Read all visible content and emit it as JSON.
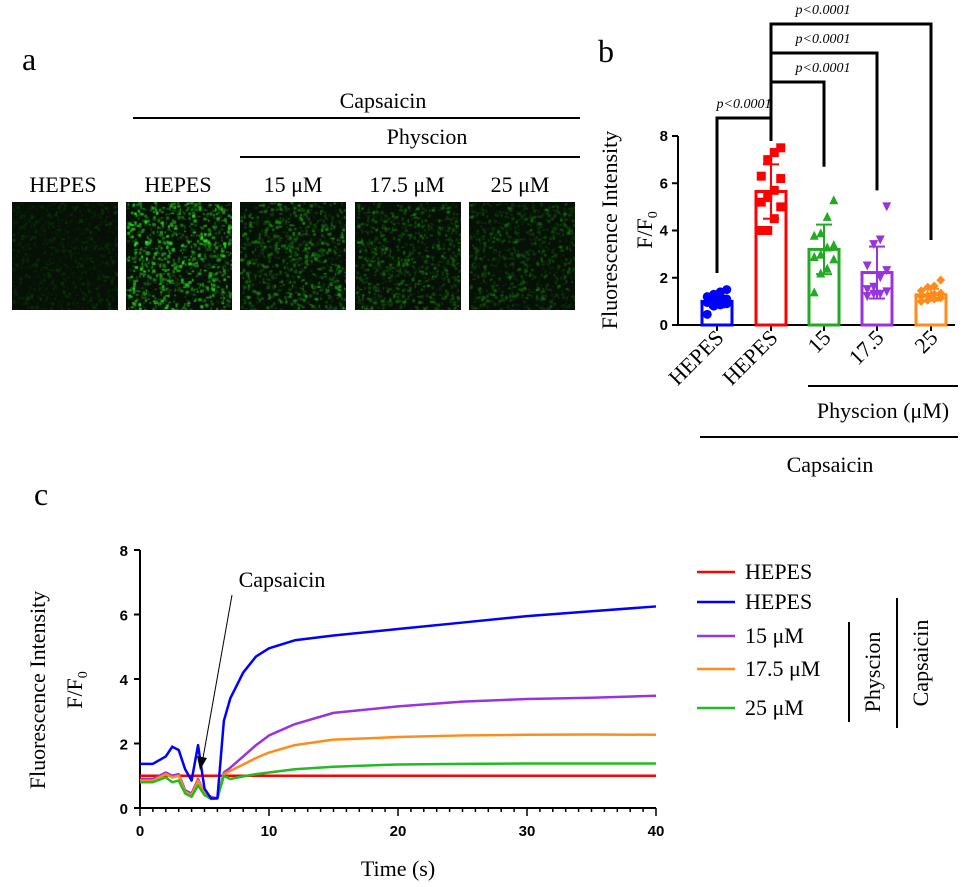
{
  "panel_a": {
    "label": "a",
    "group_label": "Capsaicin",
    "subgroup_label": "Physcion",
    "columns": [
      "HEPES",
      "HEPES",
      "15 μM",
      "17.5 μM",
      "25 μM"
    ],
    "image_brightness": [
      0.15,
      1.0,
      0.55,
      0.45,
      0.35
    ],
    "fluorescence_color": "#22dd22"
  },
  "chart_data": [
    {
      "panel": "b",
      "type": "bar",
      "ylabel_line1": "Fluorescence Intensity",
      "ylabel_line2": "F/F",
      "ylabel_sub": "0",
      "ylim": [
        0,
        8
      ],
      "yticks": [
        "0",
        "2",
        "4",
        "6",
        "8"
      ],
      "categories": [
        "HEPES",
        "HEPES",
        "15",
        "17.5",
        "25"
      ],
      "colors": [
        "#0000ff",
        "#ff0000",
        "#22aa22",
        "#9933dd",
        "#ff8c1a"
      ],
      "markers": [
        "circle",
        "square",
        "triangle-up",
        "triangle-down",
        "diamond"
      ],
      "means": [
        1.0,
        5.65,
        3.2,
        2.22,
        1.28
      ],
      "sd": [
        0.25,
        1.15,
        1.05,
        1.1,
        0.25
      ],
      "points": [
        [
          0.45,
          0.8,
          0.85,
          0.9,
          0.95,
          1.0,
          1.05,
          1.1,
          1.2,
          1.3,
          1.4,
          1.5
        ],
        [
          4.0,
          4.0,
          4.5,
          5.0,
          5.2,
          5.4,
          5.7,
          6.2,
          6.3,
          7.0,
          7.3,
          7.5
        ],
        [
          1.4,
          2.2,
          2.4,
          2.8,
          2.9,
          3.0,
          3.3,
          3.4,
          3.8,
          3.9,
          4.6,
          5.3
        ],
        [
          1.2,
          1.3,
          1.3,
          1.4,
          1.5,
          1.6,
          2.0,
          2.3,
          2.5,
          3.4,
          3.6,
          5.0
        ],
        [
          1.0,
          1.05,
          1.1,
          1.15,
          1.2,
          1.25,
          1.3,
          1.35,
          1.45,
          1.6,
          1.65,
          1.9
        ]
      ],
      "comparisons": [
        {
          "pair": [
            0,
            1
          ],
          "label": "p<0.0001"
        },
        {
          "pair": [
            1,
            2
          ],
          "label": "p<0.0001"
        },
        {
          "pair": [
            1,
            3
          ],
          "label": "p<0.0001"
        },
        {
          "pair": [
            1,
            4
          ],
          "label": "p<0.0001"
        }
      ],
      "group_labels": {
        "physcion": "Physcion (μM)",
        "capsaicin": "Capsaicin"
      },
      "label": "b"
    },
    {
      "panel": "c",
      "type": "line",
      "label": "c",
      "xlabel": "Time (s)",
      "ylabel_line1": "Fluorescence Intensity",
      "ylabel_line2": "F/F",
      "ylabel_sub": "0",
      "xlim": [
        0,
        40
      ],
      "ylim": [
        0,
        8
      ],
      "xticks": [
        "0",
        "10",
        "20",
        "30",
        "40"
      ],
      "yticks": [
        "0",
        "2",
        "4",
        "6",
        "8"
      ],
      "annotation": "Capsaicin",
      "x": [
        0,
        1,
        2,
        2.5,
        3,
        3.5,
        4,
        4.5,
        5,
        5.5,
        6,
        6.5,
        7,
        8,
        9,
        10,
        12,
        15,
        20,
        25,
        30,
        35,
        40
      ],
      "series": [
        {
          "name": "HEPES",
          "color": "#ff0000",
          "values": [
            1,
            1,
            1,
            1,
            1,
            1,
            1,
            1,
            1,
            1,
            1,
            1,
            1,
            1,
            1,
            1,
            1,
            1,
            1,
            1,
            1,
            1,
            1
          ]
        },
        {
          "name": "HEPES",
          "color": "#0000ff",
          "values": [
            1.37,
            1.37,
            1.6,
            1.9,
            1.8,
            1.2,
            0.85,
            1.95,
            0.6,
            0.3,
            0.3,
            2.7,
            3.4,
            4.2,
            4.7,
            4.95,
            5.2,
            5.35,
            5.55,
            5.75,
            5.95,
            6.1,
            6.25
          ]
        },
        {
          "name": "15 μM",
          "color": "#9933dd",
          "values": [
            0.9,
            0.9,
            1.1,
            1.0,
            1.05,
            0.55,
            0.45,
            0.9,
            0.45,
            0.35,
            0.3,
            1.1,
            1.25,
            1.6,
            1.95,
            2.25,
            2.6,
            2.95,
            3.15,
            3.3,
            3.38,
            3.42,
            3.48
          ]
        },
        {
          "name": "17.5 μM",
          "color": "#ff8c1a",
          "values": [
            0.85,
            0.85,
            1.05,
            0.95,
            1.0,
            0.5,
            0.4,
            0.85,
            0.45,
            0.32,
            0.3,
            1.05,
            1.15,
            1.35,
            1.55,
            1.72,
            1.95,
            2.12,
            2.2,
            2.25,
            2.27,
            2.28,
            2.27
          ]
        },
        {
          "name": "25 μM",
          "color": "#22bb22",
          "values": [
            0.8,
            0.8,
            0.95,
            0.8,
            0.85,
            0.45,
            0.35,
            0.7,
            0.4,
            0.28,
            0.3,
            1.0,
            0.9,
            0.98,
            1.05,
            1.1,
            1.2,
            1.28,
            1.35,
            1.37,
            1.38,
            1.38,
            1.38
          ]
        }
      ],
      "legend_groups": {
        "physcion": "Physcion",
        "capsaicin": "Capsaicin"
      },
      "legend_placement": "right"
    }
  ]
}
